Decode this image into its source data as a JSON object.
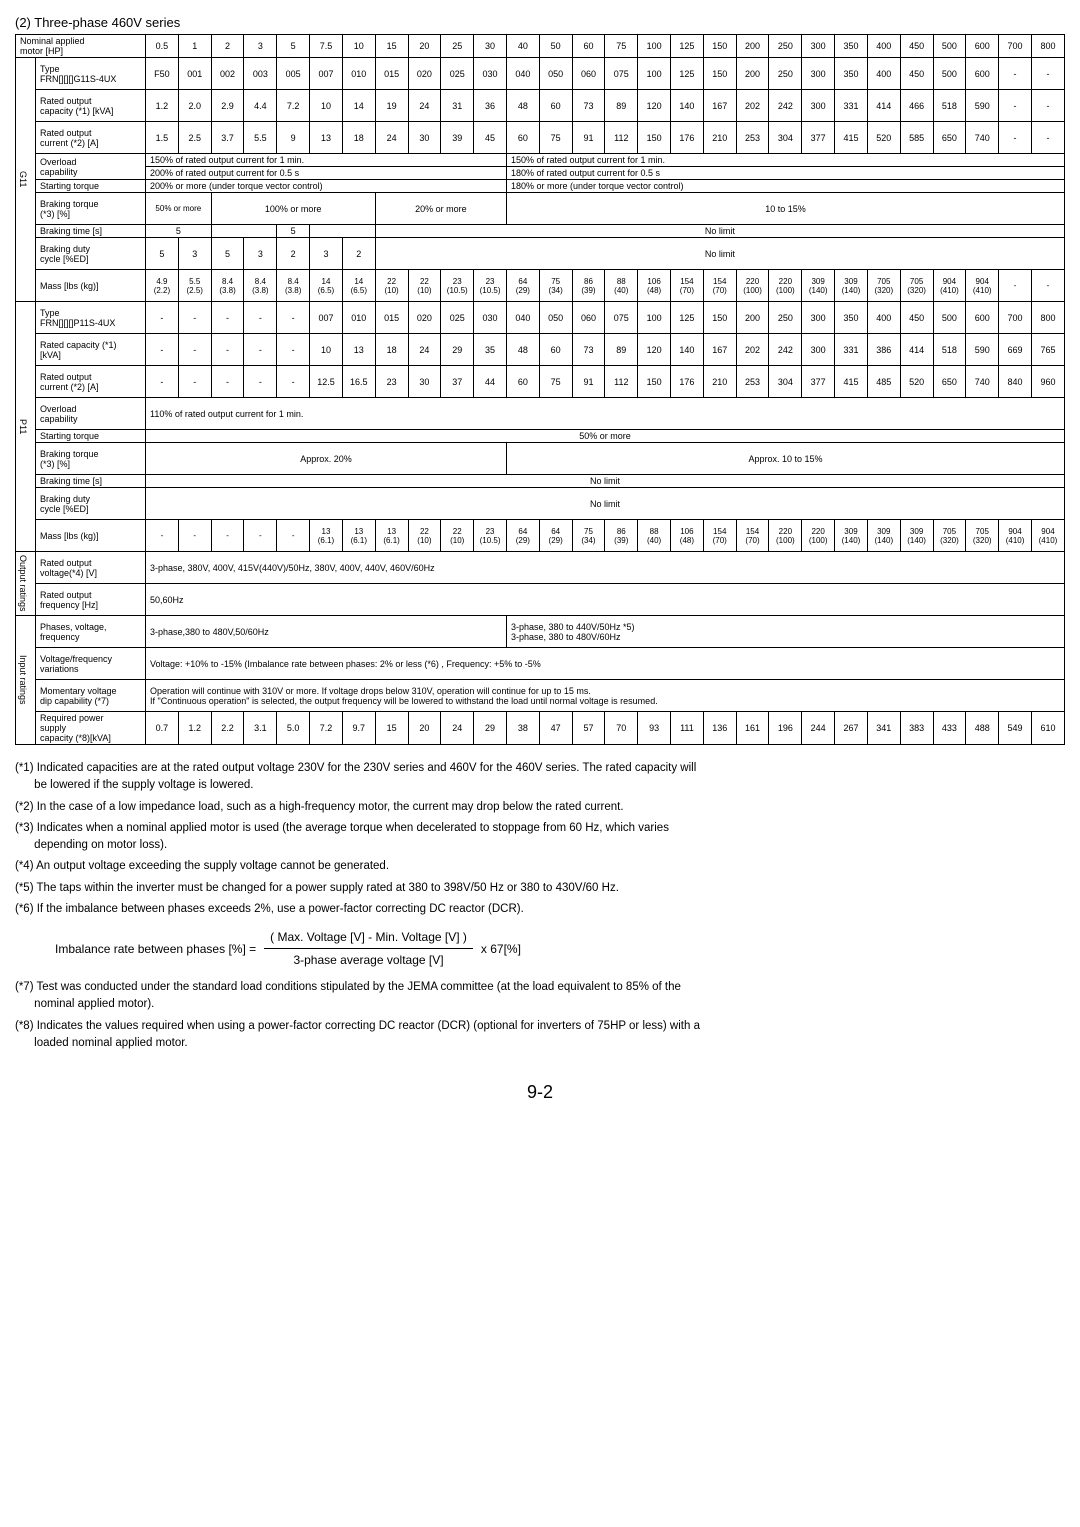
{
  "section_title": "(2) Three-phase 460V series",
  "header": {
    "nominal": "Nominal applied\nmotor [HP]",
    "cols_top": [
      "0.5",
      "1",
      "2",
      "3",
      "5",
      "7.5",
      "10",
      "15",
      "20",
      "25",
      "30",
      "40",
      "50",
      "60",
      "75",
      "100",
      "125",
      "150",
      "200",
      "250",
      "300",
      "350",
      "400",
      "450",
      "500",
      "600",
      "700",
      "800"
    ]
  },
  "g11": {
    "label": "G11",
    "type_label": "Type\nFRN[][][]G11S-4UX",
    "type_vals": [
      "F50",
      "001",
      "002",
      "003",
      "005",
      "007",
      "010",
      "015",
      "020",
      "025",
      "030",
      "040",
      "050",
      "060",
      "075",
      "100",
      "125",
      "150",
      "200",
      "250",
      "300",
      "350",
      "400",
      "450",
      "500",
      "600",
      "-",
      "-"
    ],
    "rated_output_label": "Rated output\ncapacity (*1) [kVA]",
    "rated_output_vals": [
      "1.2",
      "2.0",
      "2.9",
      "4.4",
      "7.2",
      "10",
      "14",
      "19",
      "24",
      "31",
      "36",
      "48",
      "60",
      "73",
      "89",
      "120",
      "140",
      "167",
      "202",
      "242",
      "300",
      "331",
      "414",
      "466",
      "518",
      "590",
      "-",
      "-"
    ],
    "rated_current_label": "Rated output\ncurrent  (*2) [A]",
    "rated_current_vals": [
      "1.5",
      "2.5",
      "3.7",
      "5.5",
      "9",
      "13",
      "18",
      "24",
      "30",
      "39",
      "45",
      "60",
      "75",
      "91",
      "112",
      "150",
      "176",
      "210",
      "253",
      "304",
      "377",
      "415",
      "520",
      "585",
      "650",
      "740",
      "-",
      "-"
    ],
    "overload_label": "Overload\ncapability",
    "overload_left1": "150% of rated output current for 1 min.",
    "overload_left2": "200% of rated output current for 0.5 s",
    "overload_right1": "150% of rated output current for 1 min.",
    "overload_right2": "180% of rated output current for 0.5 s",
    "start_torque_label": "Starting torque",
    "start_torque_left": "200% or more (under torque vector control)",
    "start_torque_right": "180% or more (under torque vector control)",
    "brake_torque_label": "Braking torque\n(*3) [%]",
    "brake_torque_1": "50% or more",
    "brake_torque_2": "100% or more",
    "brake_torque_3": "20% or more",
    "brake_torque_4": "10 to 15%",
    "brake_time_label": "Braking time [s]",
    "brake_time_1": "5",
    "brake_time_2": "5",
    "brake_time_3": "No limit",
    "brake_duty_label": "Braking duty\ncycle [%ED]",
    "brake_duty_vals": [
      "5",
      "3",
      "5",
      "3",
      "2",
      "3",
      "2"
    ],
    "brake_duty_right": "No limit",
    "mass_label": "Mass [lbs (kg)]",
    "mass_top": [
      "4.9",
      "5.5",
      "8.4",
      "8.4",
      "8.4",
      "14",
      "14",
      "22",
      "22",
      "23",
      "23",
      "64",
      "75",
      "86",
      "88",
      "106",
      "154",
      "154",
      "220",
      "220",
      "309",
      "309",
      "705",
      "705",
      "904",
      "904",
      "-",
      "-"
    ],
    "mass_bot": [
      "(2.2)",
      "(2.5)",
      "(3.8)",
      "(3.8)",
      "(3.8)",
      "(6.5)",
      "(6.5)",
      "(10)",
      "(10)",
      "(10.5)",
      "(10.5)",
      "(29)",
      "(34)",
      "(39)",
      "(40)",
      "(48)",
      "(70)",
      "(70)",
      "(100)",
      "(100)",
      "(140)",
      "(140)",
      "(320)",
      "(320)",
      "(410)",
      "(410)",
      "",
      ""
    ]
  },
  "p11": {
    "label": "P11",
    "type_label": "Type\nFRN[][][]P11S-4UX",
    "type_vals": [
      "-",
      "-",
      "-",
      "-",
      "-",
      "007",
      "010",
      "015",
      "020",
      "025",
      "030",
      "040",
      "050",
      "060",
      "075",
      "100",
      "125",
      "150",
      "200",
      "250",
      "300",
      "350",
      "400",
      "450",
      "500",
      "600",
      "700",
      "800"
    ],
    "rated_cap_label": "Rated capacity (*1)\n[kVA]",
    "rated_cap_vals": [
      "-",
      "-",
      "-",
      "-",
      "-",
      "10",
      "13",
      "18",
      "24",
      "29",
      "35",
      "48",
      "60",
      "73",
      "89",
      "120",
      "140",
      "167",
      "202",
      "242",
      "300",
      "331",
      "386",
      "414",
      "518",
      "590",
      "669",
      "765"
    ],
    "rated_cur_label": "Rated output\ncurrent  (*2) [A]",
    "rated_cur_vals": [
      "-",
      "-",
      "-",
      "-",
      "-",
      "12.5",
      "16.5",
      "23",
      "30",
      "37",
      "44",
      "60",
      "75",
      "91",
      "112",
      "150",
      "176",
      "210",
      "253",
      "304",
      "377",
      "415",
      "485",
      "520",
      "650",
      "740",
      "840",
      "960"
    ],
    "overload_label": "Overload\ncapability",
    "overload_val": "110% of rated output current for 1 min.",
    "start_torque_label": "Starting torque",
    "start_torque_val": "50% or more",
    "brake_torque_label": "Braking torque\n(*3) [%]",
    "brake_torque_left": "Approx. 20%",
    "brake_torque_right": "Approx. 10 to 15%",
    "brake_time_label": "Braking time [s]",
    "brake_time_val": "No limit",
    "brake_duty_label": "Braking duty\ncycle [%ED]",
    "brake_duty_val": "No limit",
    "mass_label": "Mass [lbs (kg)]",
    "mass_top": [
      "-",
      "-",
      "-",
      "-",
      "-",
      "13",
      "13",
      "13",
      "22",
      "22",
      "23",
      "64",
      "64",
      "75",
      "86",
      "88",
      "106",
      "154",
      "154",
      "220",
      "220",
      "309",
      "309",
      "309",
      "705",
      "705",
      "904",
      "904"
    ],
    "mass_bot": [
      "",
      "",
      "",
      "",
      "",
      "(6.1)",
      "(6.1)",
      "(6.1)",
      "(10)",
      "(10)",
      "(10.5)",
      "(29)",
      "(29)",
      "(34)",
      "(39)",
      "(40)",
      "(48)",
      "(70)",
      "(70)",
      "(100)",
      "(100)",
      "(140)",
      "(140)",
      "(140)",
      "(320)",
      "(320)",
      "(410)",
      "(410)"
    ]
  },
  "output": {
    "label": "Output\nratings",
    "voltage_label": "Rated output\nvoltage(*4) [V]",
    "voltage_val": "3-phase, 380V, 400V, 415V(440V)/50Hz, 380V, 400V, 440V, 460V/60Hz",
    "freq_label": "Rated output\nfrequency [Hz]",
    "freq_val": "50,60Hz"
  },
  "input": {
    "label": "Input ratings",
    "phases_label": "Phases, voltage,\nfrequency",
    "phases_left": "3-phase,380 to 480V,50/60Hz",
    "phases_right1": "3-phase, 380 to 440V/50Hz        *5)",
    "phases_right2": "3-phase, 380 to 480V/60Hz",
    "vf_var_label": "Voltage/frequency\nvariations",
    "vf_var_val": "Voltage:   +10% to -15% (Imbalance rate between phases:   2% or less (*6) , Frequency:   +5% to -5%",
    "momentary_label": "Momentary voltage\ndip capability (*7)",
    "momentary_val1": "Operation will continue with 310V or more.    If voltage drops below 310V, operation will continue for up to 15 ms.",
    "momentary_val2": "If \"Continuous operation\" is selected, the output frequency will be lowered to withstand the load until normal voltage is resumed.",
    "req_power_label": "Required power\nsupply\ncapacity (*8)[kVA]",
    "req_power_vals": [
      "0.7",
      "1.2",
      "2.2",
      "3.1",
      "5.0",
      "7.2",
      "9.7",
      "15",
      "20",
      "24",
      "29",
      "38",
      "47",
      "57",
      "70",
      "93",
      "111",
      "136",
      "161",
      "196",
      "244",
      "267",
      "341",
      "383",
      "433",
      "488",
      "549",
      "610"
    ]
  },
  "footnotes": {
    "f1a": "(*1) Indicated capacities are at the rated output voltage 230V for the 230V series and 460V for the 460V series.     The rated capacity will",
    "f1b": "be lowered if the supply voltage is lowered.",
    "f2": "(*2) In the case of a low impedance load, such as a high-frequency motor, the current may drop below the rated current.",
    "f3a": "(*3) Indicates when a nominal applied motor is used (the average torque when decelerated to stoppage from 60 Hz, which varies",
    "f3b": "depending on motor loss).",
    "f4": "(*4) An output voltage exceeding the supply voltage cannot be generated.",
    "f5": "(*5) The taps within the inverter must be changed for a power supply rated at 380 to 398V/50 Hz or 380 to 430V/60 Hz.",
    "f6": "(*6) If the imbalance between phases exceeds 2%, use a power-factor correcting DC reactor (DCR).",
    "formula_label": "Imbalance rate between phases [%] =",
    "formula_num": "( Max. Voltage [V] - Min. Voltage [V] )",
    "formula_den": "3-phase average voltage [V]",
    "formula_mult": "x 67[%]",
    "f7a": "(*7) Test was conducted under the standard load conditions stipulated by the JEMA committee (at the load equivalent to 85% of the",
    "f7b": "nominal applied motor).",
    "f8a": "(*8) Indicates the values required when using a power-factor correcting DC reactor (DCR) (optional for inverters of 75HP or less) with a",
    "f8b": "loaded nominal applied motor."
  },
  "page": "9-2"
}
